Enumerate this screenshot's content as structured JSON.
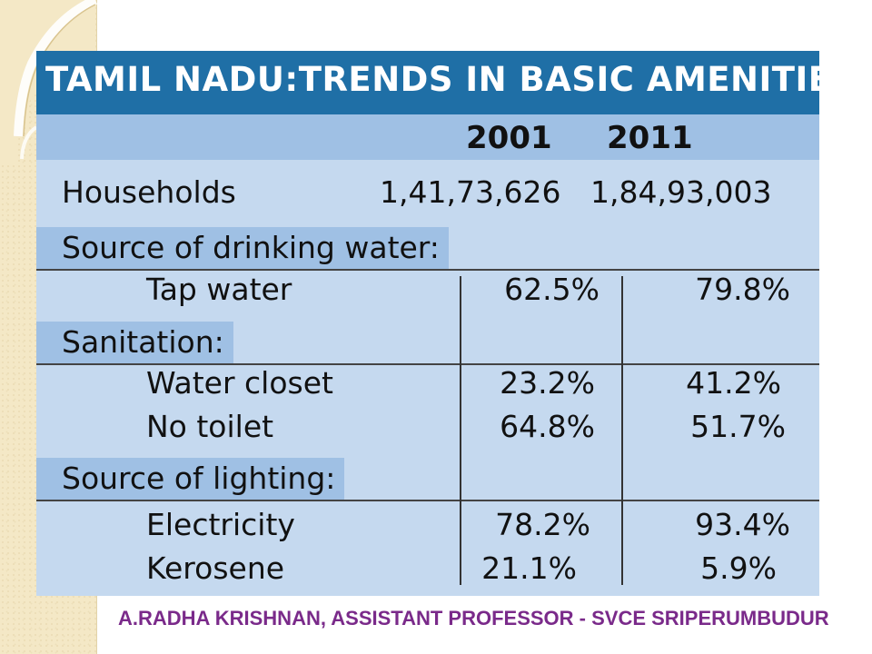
{
  "table": {
    "title": "TAMIL NADU:TRENDS IN BASIC AMENITIES",
    "year_2001": "2001",
    "year_2011": "2011",
    "households": {
      "label": "Households",
      "v2001": "1,41,73,626",
      "v2011": "1,84,93,003"
    },
    "sections": [
      {
        "label": "Source of drinking  water:",
        "rows": [
          {
            "label": "Tap water",
            "v2001": "62.5%",
            "v2011": "79.8%"
          }
        ]
      },
      {
        "label": "Sanitation:",
        "rows": [
          {
            "label": "Water closet",
            "v2001": "23.2%",
            "v2011": "41.2%"
          },
          {
            "label": "No toilet",
            "v2001": "64.8%",
            "v2011": "51.7%"
          }
        ]
      },
      {
        "label": "Source of lighting:",
        "rows": [
          {
            "label": "Electricity",
            "v2001": "78.2%",
            "v2011": "93.4%"
          },
          {
            "label": "Kerosene",
            "v2001": "21.1%",
            "v2011": "5.9%"
          }
        ]
      }
    ]
  },
  "footer": {
    "credit": "A.RADHA KRISHNAN, ASSISTANT PROFESSOR - SVCE SRIPERUMBUDUR"
  },
  "colors": {
    "title_bar": "#1f6fa6",
    "header_band": "#9fc0e4",
    "table_bg": "#c5d9ef",
    "credit_text": "#7a2a8a",
    "side_strip": "#f4e8c6"
  }
}
